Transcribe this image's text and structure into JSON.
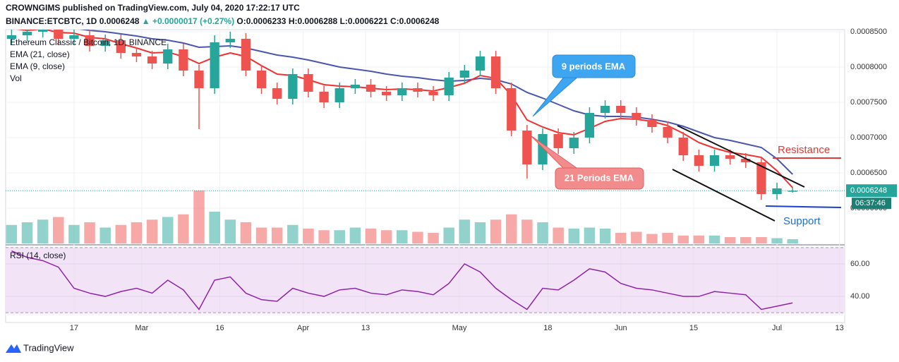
{
  "header": {
    "author_line": "CROWNGIMS published on TradingView.com, July 04, 2020 17:22:17 UTC",
    "symbol": "BINANCE:ETCBTC, 1D",
    "change": "▲ +0.0000017 (+0.27%)",
    "open": "O:0.0006233",
    "high": "H:0.0006288",
    "low": "L:0.0006221",
    "close": "C:0.0006248"
  },
  "footer": "TradingView",
  "chart_data": {
    "type": "candlestick",
    "title": "Ethereum Classic / Bitcoin, 1D, BINANCE",
    "x": [
      "2020-02-05",
      "2020-02-08",
      "2020-02-11",
      "2020-02-14",
      "2020-02-17",
      "2020-02-20",
      "2020-02-23",
      "2020-02-26",
      "2020-02-29",
      "2020-03-03",
      "2020-03-06",
      "2020-03-09",
      "2020-03-12",
      "2020-03-15",
      "2020-03-18",
      "2020-03-21",
      "2020-03-24",
      "2020-03-27",
      "2020-03-30",
      "2020-04-02",
      "2020-04-05",
      "2020-04-08",
      "2020-04-11",
      "2020-04-14",
      "2020-04-17",
      "2020-04-20",
      "2020-04-23",
      "2020-04-26",
      "2020-04-29",
      "2020-05-02",
      "2020-05-05",
      "2020-05-08",
      "2020-05-11",
      "2020-05-14",
      "2020-05-17",
      "2020-05-20",
      "2020-05-23",
      "2020-05-26",
      "2020-05-29",
      "2020-06-01",
      "2020-06-04",
      "2020-06-07",
      "2020-06-10",
      "2020-06-13",
      "2020-06-16",
      "2020-06-19",
      "2020-06-22",
      "2020-06-25",
      "2020-06-28",
      "2020-07-01",
      "2020-07-04"
    ],
    "open": [
      0.00084,
      0.000845,
      0.00085,
      0.000858,
      0.00084,
      0.000845,
      0.00083,
      0.000838,
      0.00082,
      0.000815,
      0.000805,
      0.000825,
      0.000795,
      0.00077,
      0.000835,
      0.00084,
      0.000795,
      0.00077,
      0.000755,
      0.00079,
      0.000765,
      0.00075,
      0.00077,
      0.000775,
      0.000765,
      0.00076,
      0.00077,
      0.000765,
      0.00076,
      0.000785,
      0.000795,
      0.000815,
      0.00077,
      0.00071,
      0.000662,
      0.000705,
      0.000685,
      0.0007,
      0.000735,
      0.000745,
      0.000735,
      0.000725,
      0.000715,
      0.0007,
      0.000675,
      0.00066,
      0.000675,
      0.00067,
      0.000665,
      0.00062,
      0.0006233
    ],
    "high": [
      0.000853,
      0.000856,
      0.000866,
      0.000866,
      0.000853,
      0.000853,
      0.000846,
      0.000846,
      0.000828,
      0.000823,
      0.000833,
      0.000833,
      0.000803,
      0.000845,
      0.00085,
      0.000848,
      0.000803,
      0.000778,
      0.000798,
      0.000798,
      0.000773,
      0.000778,
      0.000783,
      0.000783,
      0.000773,
      0.000778,
      0.000778,
      0.000773,
      0.000793,
      0.000803,
      0.000823,
      0.000823,
      0.000778,
      0.000718,
      0.000713,
      0.000713,
      0.000708,
      0.000743,
      0.000753,
      0.000753,
      0.000743,
      0.000733,
      0.000723,
      0.000708,
      0.000683,
      0.000683,
      0.000683,
      0.000678,
      0.000673,
      0.000636,
      0.0006288
    ],
    "low": [
      0.000832,
      0.000837,
      0.000842,
      0.000832,
      0.000832,
      0.000822,
      0.000822,
      0.000812,
      0.000807,
      0.000797,
      0.000797,
      0.000787,
      0.000712,
      0.000762,
      0.000827,
      0.000787,
      0.000762,
      0.000747,
      0.000747,
      0.000757,
      0.000742,
      0.000742,
      0.000762,
      0.000757,
      0.000752,
      0.000752,
      0.000757,
      0.000752,
      0.000752,
      0.000777,
      0.000787,
      0.000762,
      0.000702,
      0.000642,
      0.000654,
      0.000677,
      0.000677,
      0.000692,
      0.000727,
      0.000727,
      0.000717,
      0.000707,
      0.000692,
      0.000667,
      0.000652,
      0.000652,
      0.000662,
      0.000657,
      0.000612,
      0.000612,
      0.0006221
    ],
    "close": [
      0.000845,
      0.00085,
      0.000858,
      0.00084,
      0.000845,
      0.00083,
      0.000838,
      0.00082,
      0.000815,
      0.000805,
      0.000825,
      0.000795,
      0.00077,
      0.000835,
      0.00084,
      0.000795,
      0.00077,
      0.000755,
      0.00079,
      0.000765,
      0.00075,
      0.00077,
      0.000775,
      0.000765,
      0.00076,
      0.00077,
      0.000765,
      0.00076,
      0.000785,
      0.000795,
      0.000815,
      0.00077,
      0.00071,
      0.000662,
      0.000705,
      0.000685,
      0.0007,
      0.000735,
      0.000745,
      0.000735,
      0.000725,
      0.000715,
      0.0007,
      0.000675,
      0.00066,
      0.000675,
      0.00067,
      0.000665,
      0.00062,
      0.000628,
      0.0006248
    ],
    "volume_name": "Vol",
    "volume": [
      35,
      40,
      45,
      50,
      35,
      40,
      30,
      35,
      40,
      45,
      50,
      55,
      100,
      60,
      45,
      40,
      30,
      30,
      35,
      28,
      25,
      25,
      30,
      28,
      25,
      25,
      22,
      20,
      30,
      45,
      40,
      45,
      55,
      45,
      40,
      30,
      28,
      30,
      28,
      20,
      22,
      18,
      20,
      15,
      15,
      15,
      12,
      12,
      12,
      10,
      8
    ],
    "vlim": [
      0,
      100
    ],
    "series": [
      {
        "name": "EMA (21, close)",
        "color": "#4a56b0",
        "values": [
          0.000862,
          0.00086,
          0.000859,
          0.000857,
          0.000855,
          0.000852,
          0.00085,
          0.000847,
          0.000844,
          0.00084,
          0.000838,
          0.000834,
          0.000828,
          0.000829,
          0.00083,
          0.000827,
          0.000822,
          0.000817,
          0.000814,
          0.00081,
          0.000805,
          0.0008,
          0.000797,
          0.000794,
          0.00079,
          0.000787,
          0.000785,
          0.000782,
          0.00078,
          0.000781,
          0.000784,
          0.000782,
          0.000776,
          0.000764,
          0.000756,
          0.000747,
          0.000738,
          0.000732,
          0.00073,
          0.00073,
          0.000729,
          0.000726,
          0.000722,
          0.000716,
          0.000708,
          0.0007,
          0.000696,
          0.000691,
          0.000686,
          0.00067,
          0.000648
        ]
      },
      {
        "name": "EMA (9, close)",
        "color": "#f23030",
        "values": [
          0.000855,
          0.000852,
          0.000854,
          0.000849,
          0.000848,
          0.000842,
          0.00084,
          0.000833,
          0.000827,
          0.00082,
          0.000821,
          0.000815,
          0.000805,
          0.000814,
          0.00082,
          0.000815,
          0.000802,
          0.00079,
          0.000788,
          0.000782,
          0.000775,
          0.000773,
          0.000772,
          0.00077,
          0.000768,
          0.000769,
          0.000768,
          0.000766,
          0.000771,
          0.000777,
          0.000788,
          0.000784,
          0.00076,
          0.000725,
          0.000715,
          0.000707,
          0.000704,
          0.000713,
          0.000723,
          0.000727,
          0.000726,
          0.000723,
          0.000717,
          0.000706,
          0.000693,
          0.000685,
          0.000679,
          0.000676,
          0.000672,
          0.000653,
          0.000629
        ]
      }
    ],
    "ylim": [
      0.00055,
      0.000853
    ],
    "yticks": [
      {
        "value": 0.0006,
        "label": "0.0006000"
      },
      {
        "value": 0.00065,
        "label": "0.0006500"
      },
      {
        "value": 0.0007,
        "label": "0.0007000"
      },
      {
        "value": 0.00075,
        "label": "0.0007500"
      },
      {
        "value": 0.0008,
        "label": "0.0008000"
      },
      {
        "value": 0.00085,
        "label": "0.0008500"
      }
    ],
    "xlim": [
      "2020-02-04",
      "2020-07-14"
    ],
    "xticks": [
      {
        "value": "2020-02-17",
        "label": "17"
      },
      {
        "value": "2020-03-01",
        "label": "Mar"
      },
      {
        "value": "2020-03-16",
        "label": "16"
      },
      {
        "value": "2020-04-01",
        "label": "Apr"
      },
      {
        "value": "2020-04-13",
        "label": "13"
      },
      {
        "value": "2020-05-01",
        "label": "May"
      },
      {
        "value": "2020-05-18",
        "label": "18"
      },
      {
        "value": "2020-06-01",
        "label": "Jun"
      },
      {
        "value": "2020-06-15",
        "label": "15"
      },
      {
        "value": "2020-07-01",
        "label": "Jul"
      },
      {
        "value": "2020-07-13",
        "label": "13"
      }
    ],
    "last": 0.0006248,
    "countdown": "06:37:46",
    "up_color": "#26a69a",
    "down_color": "#ef5350",
    "annotations": {
      "ema9": "9 periods EMA",
      "ema21": "21 Periods EMA",
      "resistance": "Resistance",
      "support": "Support"
    },
    "rsi": {
      "name": "RSI (14, close)",
      "color": "#8e24aa",
      "values": [
        68,
        64,
        62,
        58,
        45,
        42,
        40,
        43,
        45,
        42,
        50,
        44,
        32,
        50,
        52,
        42,
        38,
        37,
        45,
        42,
        40,
        44,
        45,
        42,
        41,
        44,
        43,
        41,
        48,
        60,
        55,
        45,
        38,
        32,
        45,
        44,
        50,
        57,
        55,
        48,
        45,
        44,
        42,
        40,
        40,
        43,
        42,
        41,
        32,
        34,
        36
      ],
      "ylim": [
        28.3,
        70.4
      ],
      "yticks": [
        {
          "value": 40,
          "label": "40.00"
        },
        {
          "value": 60,
          "label": "60.00"
        }
      ],
      "bands": [
        30,
        70
      ]
    }
  }
}
